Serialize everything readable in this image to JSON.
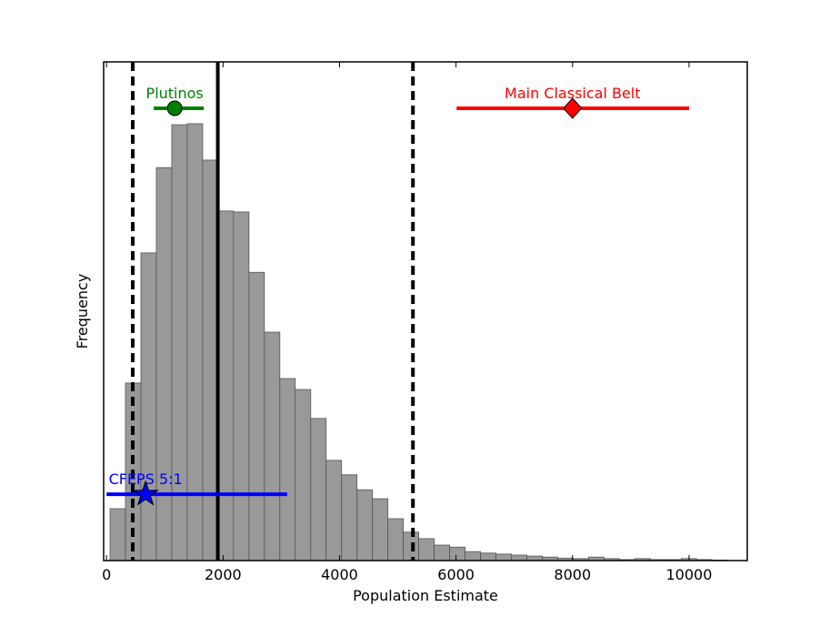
{
  "chart_data": {
    "type": "histogram",
    "xlabel": "Population Estimate",
    "ylabel": "Frequency",
    "bins": [
      60,
      325,
      590,
      855,
      1120,
      1385,
      1650,
      1915,
      2180,
      2445,
      2710,
      2975,
      3240,
      3505,
      3770,
      4035,
      4300,
      4565,
      4830,
      5095,
      5360,
      5625,
      5890,
      6155,
      6420,
      6685,
      6950,
      7215,
      7480,
      7745,
      8010,
      8275,
      8540,
      8805,
      9070,
      9335,
      9600,
      9865,
      10130,
      10395,
      10660
    ],
    "values": [
      10.4,
      35.6,
      61.7,
      78.8,
      87.4,
      87.6,
      80.3,
      70.1,
      69.9,
      57.8,
      45.8,
      36.5,
      34.3,
      28.5,
      20.1,
      17.2,
      14.2,
      12.4,
      8.4,
      5.7,
      4.4,
      3.1,
      2.7,
      1.8,
      1.5,
      1.3,
      1.1,
      0.9,
      0.7,
      0.5,
      0.4,
      0.7,
      0.4,
      0.2,
      0.4,
      0.2,
      0.2,
      0.4,
      0.2,
      0.1
    ],
    "color": "#999999",
    "xlim": [
      -50,
      11000
    ],
    "ylim": [
      0,
      100
    ],
    "xticks": [
      0,
      2000,
      4000,
      6000,
      8000,
      10000
    ],
    "vlines": [
      {
        "x": 450,
        "style": "dashed"
      },
      {
        "x": 1910,
        "style": "solid"
      },
      {
        "x": 5260,
        "style": "dashed"
      }
    ],
    "markers": [
      {
        "name": "Plutinos",
        "x": 1170,
        "xmin": 810,
        "xmax": 1670,
        "y": 90.7,
        "color": "#008000",
        "marker": "circle"
      },
      {
        "name": "Main Classical Belt",
        "x": 8000,
        "xmin": 6010,
        "xmax": 10000,
        "y": 90.7,
        "color": "#ff0000",
        "marker": "diamond"
      },
      {
        "name": "CFEPS 5:1",
        "x": 670,
        "xmin": 0,
        "xmax": 3100,
        "y": 13.3,
        "color": "#0000ff",
        "marker": "star"
      }
    ]
  }
}
